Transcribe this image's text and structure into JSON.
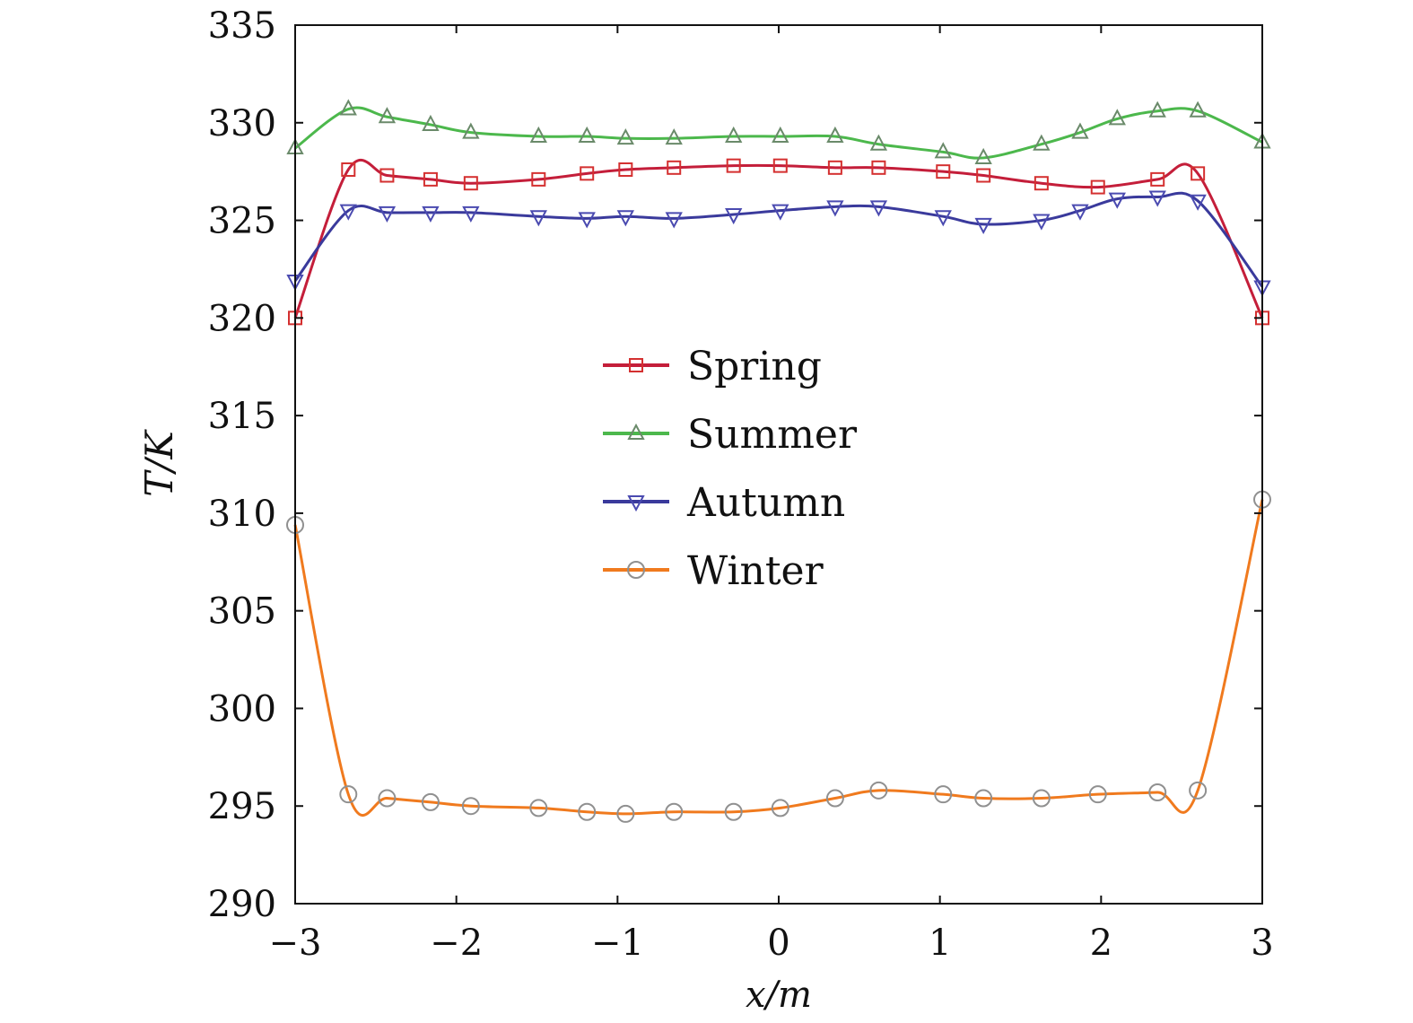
{
  "chart_data": {
    "type": "line",
    "title": "",
    "xlabel": "x/m",
    "ylabel": "T/K",
    "xlim": [
      -3,
      3
    ],
    "ylim": [
      290,
      335
    ],
    "xticks": [
      -3,
      -2,
      -1,
      0,
      1,
      2,
      3
    ],
    "xtick_labels": [
      "−3",
      "−2",
      "−1",
      "0",
      "1",
      "2",
      "3"
    ],
    "yticks": [
      290,
      295,
      300,
      305,
      310,
      315,
      320,
      325,
      330,
      335
    ],
    "ytick_labels": [
      "290",
      "295",
      "300",
      "305",
      "310",
      "315",
      "320",
      "325",
      "330",
      "335"
    ],
    "grid": false,
    "legend_position": "center",
    "series": [
      {
        "name": "Spring",
        "color": "#c41e3a",
        "marker": "square",
        "marker_color": "#d43030",
        "x": [
          -3,
          -2.67,
          -2.43,
          -2.16,
          -1.91,
          -1.49,
          -1.19,
          -0.95,
          -0.65,
          -0.28,
          0.01,
          0.35,
          0.62,
          1.02,
          1.27,
          1.63,
          1.98,
          2.35,
          2.6,
          3
        ],
        "y": [
          320.0,
          327.6,
          327.3,
          327.1,
          326.9,
          327.1,
          327.4,
          327.6,
          327.7,
          327.8,
          327.8,
          327.7,
          327.7,
          327.5,
          327.3,
          326.9,
          326.7,
          327.1,
          327.4,
          320.0
        ]
      },
      {
        "name": "Summer",
        "color": "#4cb84c",
        "marker": "triangle-up",
        "marker_color": "#6a8a6a",
        "x": [
          -3,
          -2.67,
          -2.43,
          -2.16,
          -1.91,
          -1.49,
          -1.19,
          -0.95,
          -0.65,
          -0.28,
          0.01,
          0.35,
          0.62,
          1.02,
          1.27,
          1.63,
          1.87,
          2.1,
          2.35,
          2.6,
          3
        ],
        "y": [
          328.7,
          330.7,
          330.3,
          329.9,
          329.5,
          329.3,
          329.3,
          329.2,
          329.2,
          329.3,
          329.3,
          329.3,
          328.9,
          328.5,
          328.2,
          328.9,
          329.5,
          330.2,
          330.6,
          330.6,
          329.0
        ]
      },
      {
        "name": "Autumn",
        "color": "#3a3a9c",
        "marker": "triangle-down",
        "marker_color": "#4a4ab0",
        "x": [
          -3,
          -2.67,
          -2.43,
          -2.16,
          -1.91,
          -1.49,
          -1.19,
          -0.95,
          -0.65,
          -0.28,
          0.01,
          0.35,
          0.62,
          1.02,
          1.27,
          1.63,
          1.87,
          2.1,
          2.35,
          2.6,
          3
        ],
        "y": [
          321.9,
          325.5,
          325.4,
          325.4,
          325.4,
          325.2,
          325.1,
          325.2,
          325.1,
          325.3,
          325.5,
          325.7,
          325.7,
          325.2,
          324.8,
          325.0,
          325.5,
          326.1,
          326.2,
          326.0,
          321.6
        ]
      },
      {
        "name": "Winter",
        "color": "#f07a1e",
        "marker": "circle",
        "marker_color": "#909090",
        "x": [
          -3,
          -2.67,
          -2.43,
          -2.16,
          -1.91,
          -1.49,
          -1.19,
          -0.95,
          -0.65,
          -0.28,
          0.01,
          0.35,
          0.62,
          1.02,
          1.27,
          1.63,
          1.98,
          2.35,
          2.6,
          3
        ],
        "y": [
          309.4,
          295.6,
          295.4,
          295.2,
          295.0,
          294.9,
          294.7,
          294.6,
          294.7,
          294.7,
          294.9,
          295.4,
          295.8,
          295.6,
          295.4,
          295.4,
          295.6,
          295.7,
          295.8,
          310.7
        ]
      }
    ]
  }
}
